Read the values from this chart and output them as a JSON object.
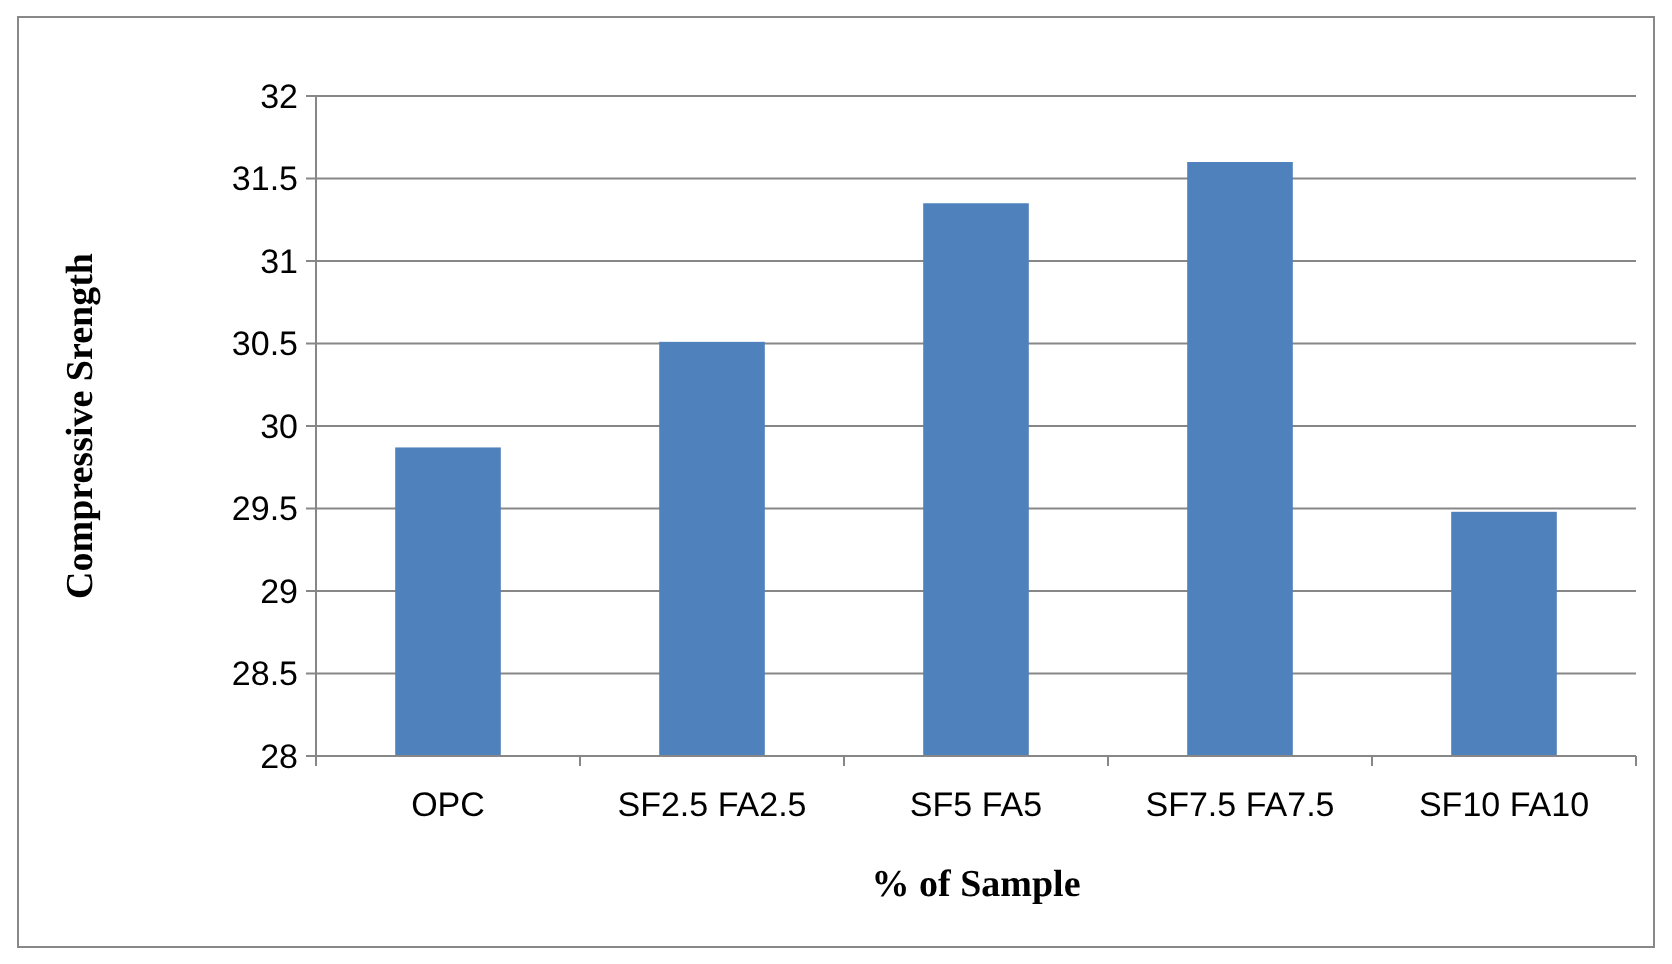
{
  "chart_data": {
    "type": "bar",
    "xlabel": "% of Sample",
    "ylabel": "Compressive Srength",
    "categories": [
      "OPC",
      "SF2.5 FA2.5",
      "SF5 FA5",
      "SF7.5 FA7.5",
      "SF10 FA10"
    ],
    "values": [
      29.87,
      30.51,
      31.35,
      31.6,
      29.48
    ],
    "color": "#4f81bd",
    "ylim": [
      28,
      32
    ],
    "yticks": [
      28,
      28.5,
      29,
      29.5,
      30,
      30.5,
      31,
      31.5,
      32
    ],
    "grid": "y"
  }
}
